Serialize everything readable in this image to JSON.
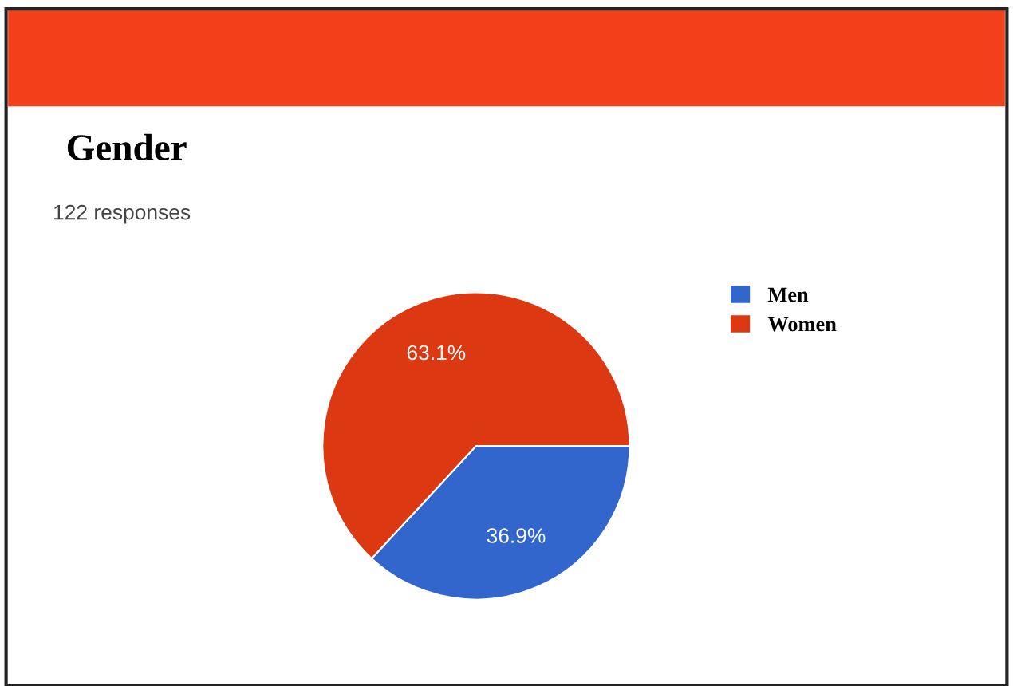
{
  "chart_data": {
    "type": "pie",
    "title": "Gender",
    "subtitle": "122 responses",
    "categories": [
      "Men",
      "Women"
    ],
    "values": [
      36.9,
      63.1
    ],
    "colors": [
      "#3366cc",
      "#dc3912"
    ],
    "value_labels": [
      "36.9%",
      "63.1%"
    ],
    "legend": "top right"
  }
}
